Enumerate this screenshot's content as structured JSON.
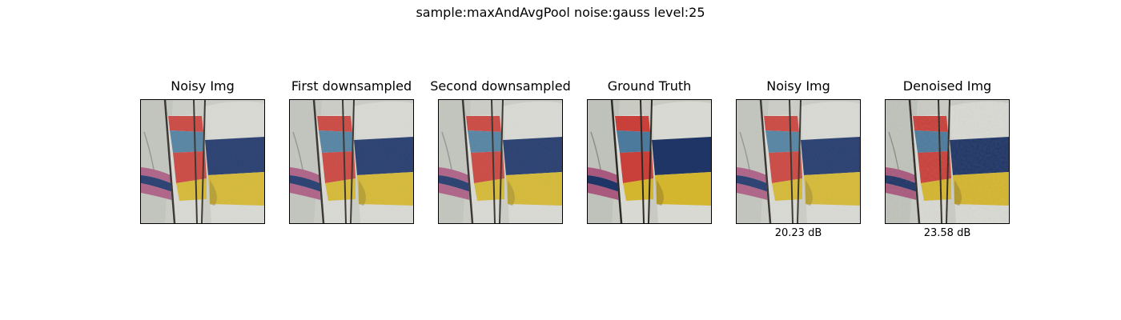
{
  "figure": {
    "suptitle": "sample:maxAndAvgPool noise:gauss level:25"
  },
  "panels": [
    {
      "title": "Noisy Img",
      "caption": "",
      "variant": "noisy"
    },
    {
      "title": "First downsampled",
      "caption": "",
      "variant": "noisy"
    },
    {
      "title": "Second downsampled",
      "caption": "",
      "variant": "noisy"
    },
    {
      "title": "Ground Truth",
      "caption": "",
      "variant": "clean"
    },
    {
      "title": "Noisy Img",
      "caption": "20.23 dB",
      "variant": "noisy"
    },
    {
      "title": "Denoised Img",
      "caption": "23.58 dB",
      "variant": "denoised"
    }
  ],
  "colors": {
    "sky": "#c9cbc3",
    "sail_white": "#d8d9d3",
    "navy": "#1f3566",
    "yellow": "#d4b52e",
    "red": "#c9403a",
    "steel_blue": "#4c7a9c",
    "pink": "#a8597d",
    "mast": "#2e2a26"
  }
}
